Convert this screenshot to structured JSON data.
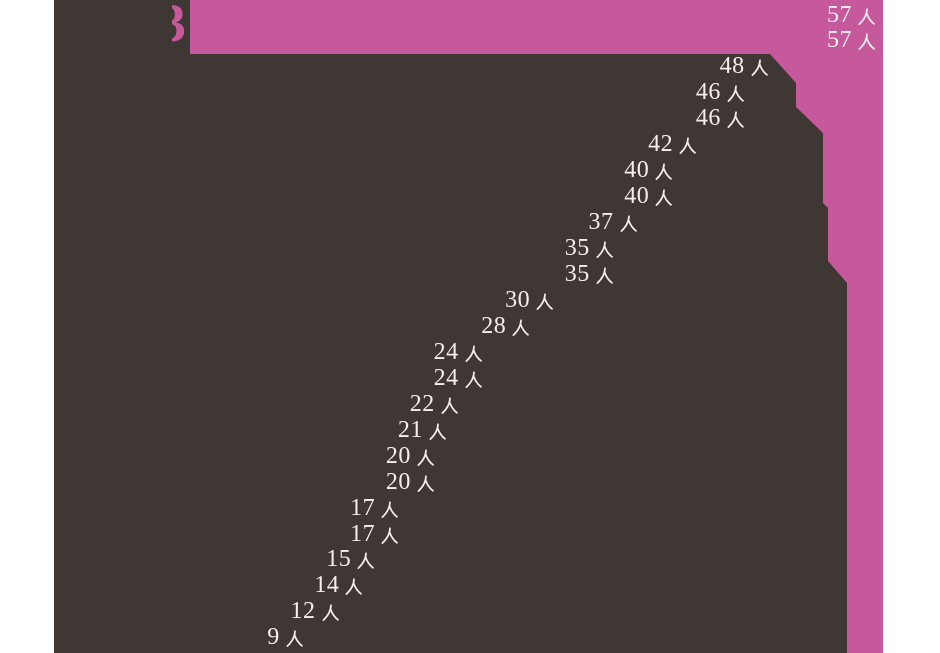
{
  "header": {
    "partial_glyph": "3"
  },
  "colors": {
    "background": "#ffffff",
    "panel_pink": "#c6599b",
    "silhouette_dark": "#3e3733",
    "label_text": "#f4efec"
  },
  "chart_data": {
    "type": "bar",
    "orientation": "horizontal",
    "sort": "descending",
    "unit": "人",
    "values": [
      57,
      57,
      48,
      46,
      46,
      42,
      40,
      40,
      37,
      35,
      35,
      30,
      28,
      24,
      24,
      22,
      21,
      20,
      20,
      17,
      17,
      15,
      14,
      12,
      9
    ],
    "labels": [
      "57人",
      "57人",
      "48人",
      "46人",
      "46人",
      "42人",
      "40人",
      "40人",
      "37人",
      "35人",
      "35人",
      "30人",
      "28人",
      "24人",
      "24人",
      "22人",
      "21人",
      "20人",
      "20人",
      "17人",
      "17人",
      "15人",
      "14人",
      "12人",
      "9人"
    ],
    "title": "",
    "xlabel": "",
    "ylabel": "",
    "legend": [],
    "value_range": [
      0,
      57
    ],
    "grid": false,
    "notes": "Value labels are right-aligned at each bar end; top two rows (57人) sit on the pink panel, remaining labels sit on the dark silhouette."
  }
}
